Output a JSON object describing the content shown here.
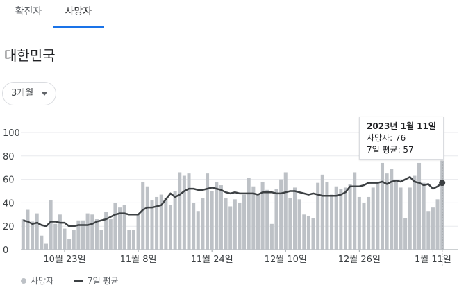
{
  "tabs": [
    {
      "label": "확진자",
      "active": false
    },
    {
      "label": "사망자",
      "active": true
    }
  ],
  "title": "대한민국",
  "range_select": {
    "label": "3개월"
  },
  "tooltip": {
    "date": "2023년 1월 11일",
    "line1": "사망자: 76",
    "line2": "7일 평균: 57"
  },
  "legend": {
    "bars": "사망자",
    "line": "7일 평균"
  },
  "colors": {
    "bar": "#bdc1c6",
    "line": "#3c4043",
    "accent": "#1a73e8",
    "grid": "#e8eaed"
  },
  "chart_data": {
    "type": "bar",
    "ylim": [
      0,
      100
    ],
    "yticks": [
      0,
      20,
      40,
      60,
      80,
      100
    ],
    "xtick_labels": [
      "10월 23일",
      "11월 8일",
      "11월 24일",
      "12월 10일",
      "12월 26일",
      "1월 11일"
    ],
    "xtick_index": [
      9,
      25,
      41,
      57,
      73,
      89
    ],
    "series": [
      {
        "name": "사망자",
        "type": "bar",
        "values": [
          26,
          34,
          24,
          31,
          12,
          5,
          42,
          22,
          30,
          18,
          9,
          17,
          25,
          25,
          31,
          30,
          26,
          17,
          32,
          26,
          40,
          36,
          38,
          17,
          17,
          30,
          58,
          54,
          42,
          45,
          47,
          44,
          38,
          50,
          66,
          63,
          65,
          40,
          33,
          44,
          65,
          50,
          58,
          55,
          44,
          37,
          43,
          40,
          47,
          61,
          54,
          48,
          58,
          51,
          22,
          52,
          60,
          66,
          44,
          53,
          43,
          30,
          29,
          27,
          57,
          64,
          58,
          47,
          54,
          52,
          53,
          56,
          66,
          45,
          40,
          45,
          53,
          58,
          74,
          65,
          69,
          59,
          53,
          27,
          53,
          63,
          74,
          57,
          33,
          36,
          43,
          76
        ]
      },
      {
        "name": "7일 평균",
        "type": "line",
        "values": [
          25,
          24,
          22,
          23,
          21,
          20,
          24,
          24,
          23,
          23,
          20,
          20,
          21,
          21,
          21,
          22,
          24,
          25,
          26,
          28,
          30,
          31,
          31,
          30,
          30,
          30,
          34,
          36,
          36,
          37,
          38,
          43,
          48,
          45,
          47,
          50,
          52,
          52,
          51,
          51,
          52,
          53,
          52,
          51,
          49,
          48,
          49,
          48,
          48,
          48,
          48,
          47,
          49,
          49,
          49,
          48,
          48,
          49,
          50,
          50,
          49,
          48,
          47,
          48,
          47,
          46,
          46,
          46,
          46,
          47,
          49,
          54,
          54,
          54,
          55,
          57,
          57,
          57,
          58,
          56,
          58,
          59,
          58,
          60,
          62,
          58,
          57,
          55,
          56,
          52,
          54,
          57
        ]
      }
    ]
  }
}
